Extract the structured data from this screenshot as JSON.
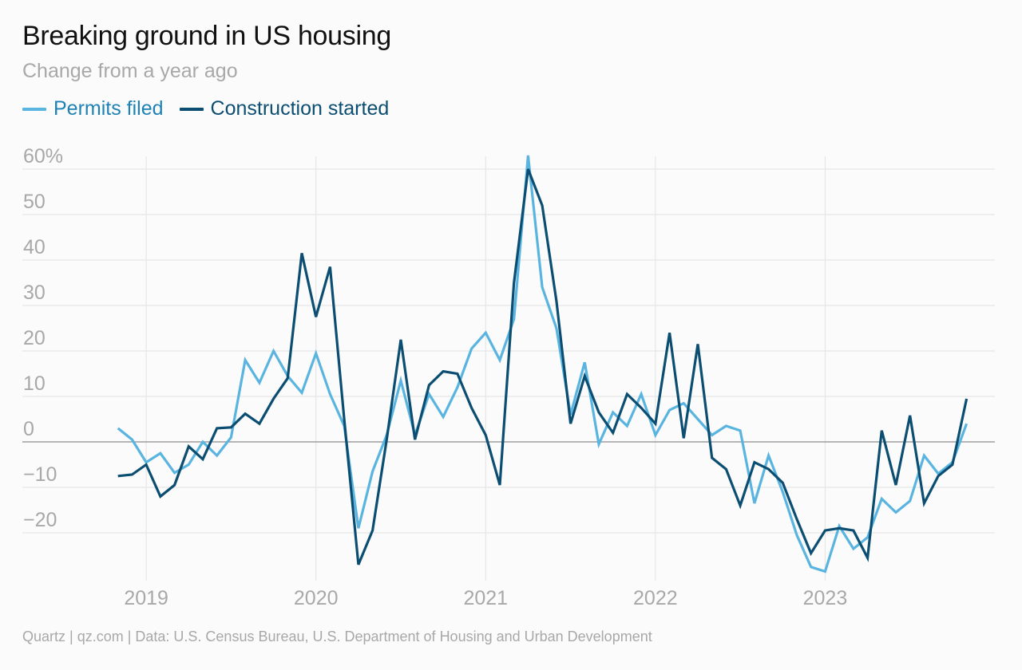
{
  "header": {
    "title": "Breaking ground in US housing",
    "subtitle": "Change from a year ago"
  },
  "source": "Quartz | qz.com | Data: U.S. Census Bureau, U.S. Department of Housing and Urban Development",
  "colors": {
    "permits": "#5ab4e0",
    "starts": "#0c4e72",
    "grid": "#e6e6e6",
    "zero_line": "#9e9e9e",
    "axis_text": "#a8a8a8"
  },
  "chart_data": {
    "type": "line",
    "title": "Breaking ground in US housing",
    "subtitle": "Change from a year ago",
    "xlabel": "",
    "ylabel": "",
    "x_axis": "monthly, Nov 2018 to Nov 2023",
    "xlim": [
      2018.83,
      2023.92
    ],
    "ylim": [
      -30,
      63
    ],
    "grid": true,
    "legend": "top-left",
    "y_ticks": [
      {
        "value": 60,
        "label": "60%"
      },
      {
        "value": 50,
        "label": "50"
      },
      {
        "value": 40,
        "label": "40"
      },
      {
        "value": 30,
        "label": "30"
      },
      {
        "value": 20,
        "label": "20"
      },
      {
        "value": 10,
        "label": "10"
      },
      {
        "value": 0,
        "label": "0"
      },
      {
        "value": -10,
        "label": "−10"
      },
      {
        "value": -20,
        "label": "−20"
      }
    ],
    "x_ticks": [
      {
        "value": 2019,
        "label": "2019"
      },
      {
        "value": 2020,
        "label": "2020"
      },
      {
        "value": 2021,
        "label": "2021"
      },
      {
        "value": 2022,
        "label": "2022"
      },
      {
        "value": 2023,
        "label": "2023"
      }
    ],
    "x": [
      "2018-11",
      "2018-12",
      "2019-01",
      "2019-02",
      "2019-03",
      "2019-04",
      "2019-05",
      "2019-06",
      "2019-07",
      "2019-08",
      "2019-09",
      "2019-10",
      "2019-11",
      "2019-12",
      "2020-01",
      "2020-02",
      "2020-03",
      "2020-04",
      "2020-05",
      "2020-06",
      "2020-07",
      "2020-08",
      "2020-09",
      "2020-10",
      "2020-11",
      "2020-12",
      "2021-01",
      "2021-02",
      "2021-03",
      "2021-04",
      "2021-05",
      "2021-06",
      "2021-07",
      "2021-08",
      "2021-09",
      "2021-10",
      "2021-11",
      "2021-12",
      "2022-01",
      "2022-02",
      "2022-03",
      "2022-04",
      "2022-05",
      "2022-06",
      "2022-07",
      "2022-08",
      "2022-09",
      "2022-10",
      "2022-11",
      "2022-12",
      "2023-01",
      "2023-02",
      "2023-03",
      "2023-04",
      "2023-05",
      "2023-06",
      "2023-07",
      "2023-08",
      "2023-09",
      "2023-10",
      "2023-11"
    ],
    "series": [
      {
        "name": "Permits filed",
        "color": "#5ab4e0",
        "values": [
          3.0,
          0.5,
          -4.5,
          -2.5,
          -6.8,
          -5.0,
          0.0,
          -3.0,
          1.0,
          18.0,
          13.0,
          20.0,
          14.5,
          10.8,
          19.5,
          10.5,
          3.5,
          -19.0,
          -6.5,
          1.5,
          13.5,
          1.5,
          10.5,
          5.5,
          12.0,
          20.5,
          24.0,
          18.0,
          27.0,
          63.0,
          34.0,
          25.0,
          6.0,
          17.5,
          -0.5,
          6.5,
          3.5,
          10.5,
          1.5,
          7.0,
          8.5,
          5.0,
          1.5,
          3.5,
          2.5,
          -13.5,
          -3.0,
          -11.0,
          -20.5,
          -27.5,
          -28.5,
          -18.5,
          -23.5,
          -21.0,
          -12.5,
          -15.5,
          -13.0,
          -3.0,
          -7.0,
          -4.5,
          4.0
        ]
      },
      {
        "name": "Construction started",
        "color": "#0c4e72",
        "values": [
          -7.5,
          -7.2,
          -5.0,
          -12.0,
          -9.5,
          -1.0,
          -3.8,
          3.0,
          3.2,
          6.2,
          4.0,
          9.5,
          14.0,
          41.5,
          27.5,
          38.5,
          5.0,
          -27.0,
          -19.5,
          0.5,
          22.5,
          0.5,
          12.5,
          15.5,
          15.0,
          7.5,
          1.5,
          -9.5,
          35.0,
          60.0,
          52.0,
          31.0,
          4.0,
          14.5,
          6.5,
          2.0,
          10.5,
          7.5,
          4.0,
          24.0,
          0.8,
          21.5,
          -3.5,
          -6.0,
          -14.0,
          -4.5,
          -6.0,
          -9.0,
          -17.0,
          -24.5,
          -19.5,
          -19.0,
          -19.5,
          -25.5,
          2.5,
          -9.5,
          5.8,
          -13.5,
          -7.5,
          -5.0,
          9.5
        ]
      }
    ]
  }
}
